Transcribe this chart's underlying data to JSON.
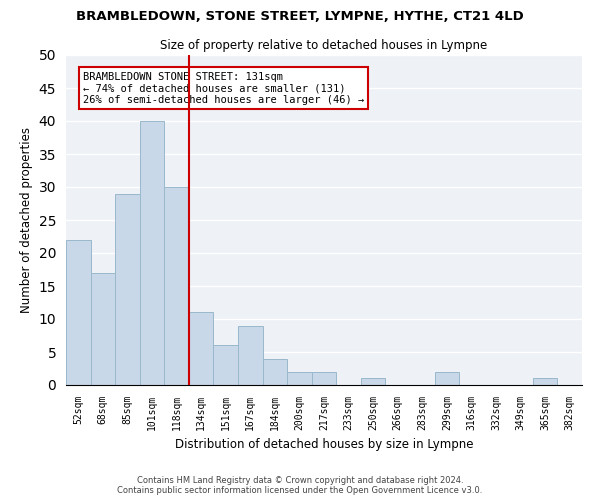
{
  "title": "BRAMBLEDOWN, STONE STREET, LYMPNE, HYTHE, CT21 4LD",
  "subtitle": "Size of property relative to detached houses in Lympne",
  "xlabel": "Distribution of detached houses by size in Lympne",
  "ylabel": "Number of detached properties",
  "categories": [
    "52sqm",
    "68sqm",
    "85sqm",
    "101sqm",
    "118sqm",
    "134sqm",
    "151sqm",
    "167sqm",
    "184sqm",
    "200sqm",
    "217sqm",
    "233sqm",
    "250sqm",
    "266sqm",
    "283sqm",
    "299sqm",
    "316sqm",
    "332sqm",
    "349sqm",
    "365sqm",
    "382sqm"
  ],
  "values": [
    22,
    17,
    29,
    40,
    30,
    11,
    6,
    9,
    4,
    2,
    2,
    0,
    1,
    0,
    0,
    2,
    0,
    0,
    0,
    1,
    0
  ],
  "bar_color": "#c8d8e8",
  "bar_edge_color": "#9ab8cc",
  "vline_x_index": 5,
  "vline_color": "#cc0000",
  "annotation_line1": "BRAMBLEDOWN STONE STREET: 131sqm",
  "annotation_line2": "← 74% of detached houses are smaller (131)",
  "annotation_line3": "26% of semi-detached houses are larger (46) →",
  "annotation_box_edge_color": "#cc0000",
  "ylim": [
    0,
    50
  ],
  "yticks": [
    0,
    5,
    10,
    15,
    20,
    25,
    30,
    35,
    40,
    45,
    50
  ],
  "footer_line1": "Contains HM Land Registry data © Crown copyright and database right 2024.",
  "footer_line2": "Contains public sector information licensed under the Open Government Licence v3.0.",
  "background_color": "#eef2f7"
}
